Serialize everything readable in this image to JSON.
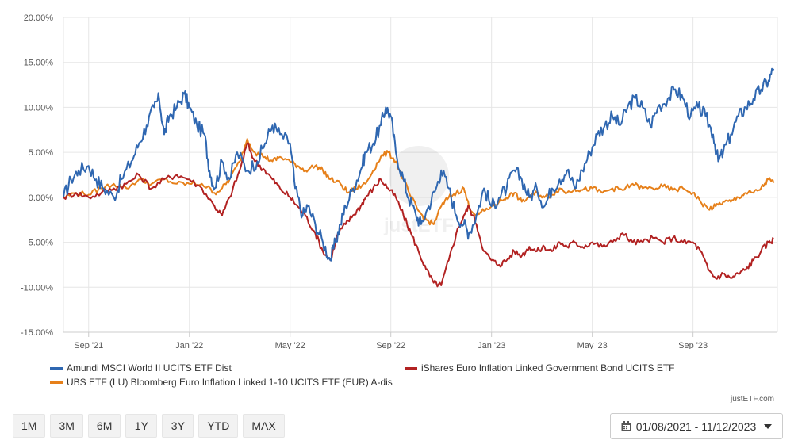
{
  "chart_data": {
    "type": "line",
    "title": "",
    "xlabel": "",
    "ylabel": "",
    "ylim": [
      -15,
      20
    ],
    "xlim": [
      "2021-08-01",
      "2023-12-11"
    ],
    "y_ticks": [
      20,
      15,
      10,
      5,
      0,
      -5,
      -10,
      -15
    ],
    "y_tick_labels": [
      "20.00%",
      "15.00%",
      "10.00%",
      "5.00%",
      "0.00%",
      "-5.00%",
      "-10.00%",
      "-15.00%"
    ],
    "x_ticks": [
      {
        "label": "Sep '21",
        "month": 1
      },
      {
        "label": "Jan '22",
        "month": 5
      },
      {
        "label": "May '22",
        "month": 9
      },
      {
        "label": "Sep '22",
        "month": 13
      },
      {
        "label": "Jan '23",
        "month": 17
      },
      {
        "label": "May '23",
        "month": 21
      },
      {
        "label": "Sep '23",
        "month": 25
      }
    ],
    "x_unit": "months since 2021-08-01",
    "series": [
      {
        "name": "Amundi MSCI World II UCITS ETF Dist",
        "color": "#2f67b1",
        "points": [
          [
            0,
            0
          ],
          [
            0.3,
            2
          ],
          [
            0.6,
            3
          ],
          [
            1,
            3.5
          ],
          [
            1.3,
            2
          ],
          [
            1.6,
            1
          ],
          [
            2,
            0
          ],
          [
            2.3,
            2
          ],
          [
            2.7,
            4
          ],
          [
            3,
            6
          ],
          [
            3.3,
            8
          ],
          [
            3.6,
            10
          ],
          [
            3.8,
            11
          ],
          [
            4,
            7
          ],
          [
            4.2,
            9
          ],
          [
            4.5,
            10
          ],
          [
            4.8,
            11.5
          ],
          [
            5,
            10
          ],
          [
            5.3,
            8
          ],
          [
            5.6,
            7
          ],
          [
            5.8,
            3
          ],
          [
            6,
            1
          ],
          [
            6.3,
            4
          ],
          [
            6.6,
            2
          ],
          [
            6.9,
            5
          ],
          [
            7.3,
            3
          ],
          [
            7.7,
            4
          ],
          [
            8,
            6
          ],
          [
            8.3,
            8
          ],
          [
            8.6,
            7
          ],
          [
            9,
            6
          ],
          [
            9.2,
            1
          ],
          [
            9.5,
            -2
          ],
          [
            9.7,
            -1
          ],
          [
            10,
            -3
          ],
          [
            10.3,
            -5
          ],
          [
            10.6,
            -7
          ],
          [
            10.8,
            -5
          ],
          [
            11,
            -3
          ],
          [
            11.2,
            -1
          ],
          [
            11.5,
            1
          ],
          [
            11.8,
            3
          ],
          [
            12,
            5
          ],
          [
            12.3,
            6
          ],
          [
            12.6,
            8
          ],
          [
            12.8,
            10
          ],
          [
            13,
            9
          ],
          [
            13.2,
            5
          ],
          [
            13.5,
            2
          ],
          [
            13.7,
            0
          ],
          [
            14,
            -2
          ],
          [
            14.2,
            -3
          ],
          [
            14.5,
            -1
          ],
          [
            14.8,
            1
          ],
          [
            15,
            3
          ],
          [
            15.3,
            1
          ],
          [
            15.6,
            -2
          ],
          [
            15.9,
            -3
          ],
          [
            16.1,
            -4
          ],
          [
            16.4,
            -2
          ],
          [
            16.7,
            1
          ],
          [
            17,
            -1
          ],
          [
            17.3,
            0
          ],
          [
            17.6,
            1
          ],
          [
            17.9,
            3
          ],
          [
            18.2,
            2
          ],
          [
            18.5,
            0
          ],
          [
            18.8,
            1
          ],
          [
            19.1,
            -1
          ],
          [
            19.4,
            1
          ],
          [
            19.7,
            2
          ],
          [
            20,
            3
          ],
          [
            20.3,
            1
          ],
          [
            20.6,
            3
          ],
          [
            20.9,
            5
          ],
          [
            21.2,
            7
          ],
          [
            21.5,
            8
          ],
          [
            21.8,
            9
          ],
          [
            22.1,
            8
          ],
          [
            22.4,
            10
          ],
          [
            22.7,
            11
          ],
          [
            23,
            10
          ],
          [
            23.3,
            8
          ],
          [
            23.6,
            10
          ],
          [
            24,
            11
          ],
          [
            24.3,
            12
          ],
          [
            24.6,
            11
          ],
          [
            24.9,
            9
          ],
          [
            25.2,
            10
          ],
          [
            25.5,
            9
          ],
          [
            25.8,
            7
          ],
          [
            26,
            4
          ],
          [
            26.2,
            5
          ],
          [
            26.5,
            7
          ],
          [
            26.8,
            9
          ],
          [
            27.1,
            10
          ],
          [
            27.4,
            11
          ],
          [
            27.7,
            12
          ],
          [
            28,
            13
          ],
          [
            28.2,
            14.3
          ]
        ]
      },
      {
        "name": "iShares Euro Inflation Linked Government Bond UCITS ETF",
        "color": "#b22222",
        "points": [
          [
            0,
            0
          ],
          [
            0.5,
            0.5
          ],
          [
            1,
            0
          ],
          [
            1.5,
            0.5
          ],
          [
            2,
            1
          ],
          [
            2.5,
            1.5
          ],
          [
            3,
            2.5
          ],
          [
            3.5,
            1
          ],
          [
            4,
            2
          ],
          [
            4.5,
            2.5
          ],
          [
            5,
            2
          ],
          [
            5.5,
            1
          ],
          [
            6,
            -1
          ],
          [
            6.3,
            -2
          ],
          [
            6.6,
            0
          ],
          [
            7,
            3
          ],
          [
            7.3,
            6
          ],
          [
            7.6,
            4
          ],
          [
            8,
            3
          ],
          [
            8.3,
            2
          ],
          [
            8.6,
            1
          ],
          [
            9,
            0
          ],
          [
            9.3,
            -1
          ],
          [
            9.6,
            -2
          ],
          [
            10,
            -4
          ],
          [
            10.3,
            -6
          ],
          [
            10.6,
            -7
          ],
          [
            10.9,
            -4
          ],
          [
            11.2,
            -3
          ],
          [
            11.5,
            -2
          ],
          [
            11.8,
            -1
          ],
          [
            12,
            0
          ],
          [
            12.3,
            1
          ],
          [
            12.6,
            2
          ],
          [
            12.9,
            1
          ],
          [
            13.2,
            0
          ],
          [
            13.5,
            -2
          ],
          [
            13.8,
            -4
          ],
          [
            14.1,
            -6
          ],
          [
            14.4,
            -8
          ],
          [
            14.7,
            -9.5
          ],
          [
            15,
            -9.8
          ],
          [
            15.3,
            -7
          ],
          [
            15.6,
            -4
          ],
          [
            15.9,
            -2
          ],
          [
            16.1,
            -1
          ],
          [
            16.4,
            -3
          ],
          [
            16.7,
            -6
          ],
          [
            17,
            -7
          ],
          [
            17.3,
            -7.5
          ],
          [
            17.6,
            -7
          ],
          [
            17.9,
            -6
          ],
          [
            18.2,
            -6.5
          ],
          [
            18.5,
            -5.5
          ],
          [
            18.8,
            -6
          ],
          [
            19.1,
            -5.5
          ],
          [
            19.4,
            -6
          ],
          [
            19.7,
            -5
          ],
          [
            20,
            -5.5
          ],
          [
            20.3,
            -5
          ],
          [
            20.6,
            -5.5
          ],
          [
            21,
            -5
          ],
          [
            21.4,
            -5.5
          ],
          [
            21.8,
            -5
          ],
          [
            22.2,
            -4
          ],
          [
            22.6,
            -5
          ],
          [
            23,
            -5
          ],
          [
            23.4,
            -4.5
          ],
          [
            23.8,
            -5
          ],
          [
            24.2,
            -4.5
          ],
          [
            24.6,
            -5
          ],
          [
            25,
            -5
          ],
          [
            25.3,
            -6
          ],
          [
            25.6,
            -8
          ],
          [
            25.9,
            -9
          ],
          [
            26.2,
            -8.5
          ],
          [
            26.5,
            -9
          ],
          [
            26.8,
            -8.5
          ],
          [
            27.1,
            -8
          ],
          [
            27.4,
            -7
          ],
          [
            27.7,
            -6
          ],
          [
            28,
            -5
          ],
          [
            28.2,
            -4.7
          ]
        ]
      },
      {
        "name": "UBS ETF (LU) Bloomberg Euro Inflation Linked 1-10 UCITS ETF (EUR) A-dis",
        "color": "#e6801a",
        "points": [
          [
            0,
            0
          ],
          [
            0.5,
            0.5
          ],
          [
            1,
            0.3
          ],
          [
            1.5,
            1
          ],
          [
            2,
            1.5
          ],
          [
            2.5,
            1
          ],
          [
            3,
            2
          ],
          [
            3.5,
            1.5
          ],
          [
            4,
            2
          ],
          [
            4.5,
            1.5
          ],
          [
            5,
            1.5
          ],
          [
            5.5,
            1.5
          ],
          [
            6,
            0.5
          ],
          [
            6.3,
            1
          ],
          [
            6.6,
            2
          ],
          [
            7,
            4
          ],
          [
            7.3,
            6.5
          ],
          [
            7.6,
            5
          ],
          [
            8,
            4.5
          ],
          [
            8.3,
            4
          ],
          [
            8.6,
            4.5
          ],
          [
            9,
            4
          ],
          [
            9.3,
            3.5
          ],
          [
            9.6,
            3
          ],
          [
            10,
            3.5
          ],
          [
            10.3,
            3
          ],
          [
            10.6,
            2
          ],
          [
            11,
            1.5
          ],
          [
            11.3,
            0.5
          ],
          [
            11.6,
            1
          ],
          [
            12,
            1.5
          ],
          [
            12.3,
            3
          ],
          [
            12.6,
            4.5
          ],
          [
            12.9,
            5
          ],
          [
            13.2,
            4
          ],
          [
            13.5,
            2
          ],
          [
            13.8,
            0
          ],
          [
            14.1,
            -1.5
          ],
          [
            14.4,
            -2.5
          ],
          [
            14.7,
            -3
          ],
          [
            15,
            -1
          ],
          [
            15.3,
            0
          ],
          [
            15.6,
            0.5
          ],
          [
            15.9,
            1
          ],
          [
            16.1,
            -1
          ],
          [
            16.4,
            -2
          ],
          [
            16.7,
            -1.5
          ],
          [
            17,
            -1
          ],
          [
            17.3,
            -0.5
          ],
          [
            17.6,
            0
          ],
          [
            17.9,
            0.5
          ],
          [
            18.2,
            -0.5
          ],
          [
            18.5,
            0
          ],
          [
            18.8,
            0.5
          ],
          [
            19.1,
            0
          ],
          [
            19.4,
            0.3
          ],
          [
            19.7,
            1
          ],
          [
            20,
            0.5
          ],
          [
            20.3,
            1
          ],
          [
            20.6,
            0.8
          ],
          [
            21,
            1
          ],
          [
            21.4,
            0.5
          ],
          [
            21.8,
            1
          ],
          [
            22.2,
            0.8
          ],
          [
            22.6,
            1.5
          ],
          [
            23,
            1
          ],
          [
            23.4,
            1
          ],
          [
            23.8,
            1.2
          ],
          [
            24.2,
            0.8
          ],
          [
            24.6,
            1
          ],
          [
            25,
            0.5
          ],
          [
            25.3,
            -0.5
          ],
          [
            25.6,
            -1.3
          ],
          [
            25.9,
            -1
          ],
          [
            26.2,
            -0.5
          ],
          [
            26.5,
            -0.5
          ],
          [
            26.8,
            0
          ],
          [
            27.1,
            0.5
          ],
          [
            27.4,
            0.5
          ],
          [
            27.7,
            1
          ],
          [
            28,
            2
          ],
          [
            28.2,
            1.6
          ]
        ]
      }
    ]
  },
  "legend": {
    "amundi": "Amundi MSCI World II UCITS ETF Dist",
    "ishares": "iShares Euro Inflation Linked Government Bond UCITS ETF",
    "ubs": "UBS ETF (LU) Bloomberg Euro Inflation Linked 1-10 UCITS ETF (EUR) A-dis"
  },
  "watermark": "justETF",
  "credit": "justETF.com",
  "range_buttons": [
    "1M",
    "3M",
    "6M",
    "1Y",
    "3Y",
    "YTD",
    "MAX"
  ],
  "date_range": "01/08/2021 - 11/12/2023",
  "colors": {
    "amundi": "#2f67b1",
    "ishares": "#b22222",
    "ubs": "#e6801a",
    "grid": "#e6e6e6"
  }
}
